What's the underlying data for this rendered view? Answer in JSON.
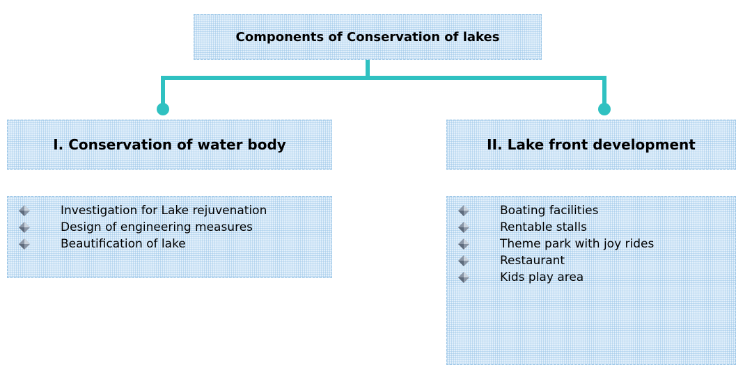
{
  "title": "Components of Conservation of lakes",
  "branches": [
    {
      "heading": "I. Conservation of water body",
      "items": [
        "Investigation for Lake rejuvenation",
        "Design of engineering measures",
        "Beautification of lake"
      ]
    },
    {
      "heading": "II. Lake front development",
      "items": [
        "Boating facilities",
        "Rentable stalls",
        "Theme park with joy rides",
        "Restaurant",
        "Kids play area"
      ]
    }
  ]
}
